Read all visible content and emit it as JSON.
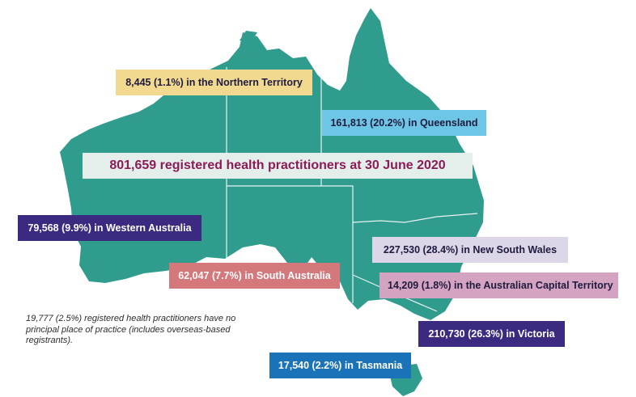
{
  "headline": "801,659 registered health practitioners at 30 June 2020",
  "note": "19,777 (2.5%) registered health practitioners have no principal place of practice (includes overseas-based registrants).",
  "colors": {
    "land": "#2f9c8e",
    "border": "#e8f4f1",
    "headline_box": "#e4efec",
    "nt": "#f1d98f",
    "qld": "#6ec6e6",
    "wa": "#3b2a80",
    "sa": "#d4787c",
    "nsw": "#dcd6e8",
    "act": "#d3a3c1",
    "vic": "#3b2a80",
    "tas": "#1a73b8"
  },
  "labels": {
    "nt": "8,445 (1.1%) in the Northern Territory",
    "qld": "161,813 (20.2%) in Queensland",
    "wa": "79,568 (9.9%) in Western Australia",
    "sa": "62,047 (7.7%) in South Australia",
    "nsw": "227,530 (28.4%) in New South Wales",
    "act": "14,209 (1.8%) in the Australian Capital Territory",
    "vic": "210,730 (26.3%) in Victoria",
    "tas": "17,540 (2.2%) in Tasmania"
  }
}
